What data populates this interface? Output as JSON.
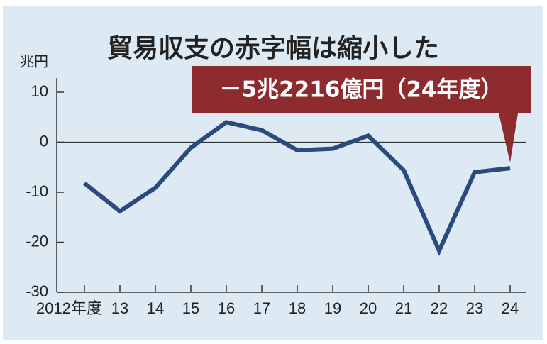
{
  "chart_data": {
    "type": "line",
    "title": "貿易収支の赤字幅は縮小した",
    "y_label": "兆円",
    "annotation": "－5兆2216億円（24年度）",
    "categories": [
      "2012年度",
      "13",
      "14",
      "15",
      "16",
      "17",
      "18",
      "19",
      "20",
      "21",
      "22",
      "23",
      "24"
    ],
    "series": [
      {
        "color": "#2c4a7e",
        "values": [
          -8.2,
          -13.8,
          -9.1,
          -1.1,
          4.0,
          2.4,
          -1.6,
          -1.3,
          1.3,
          -5.6,
          -21.7,
          -6.0,
          -5.2
        ]
      }
    ],
    "ylim": [
      -30,
      10
    ],
    "yticks": [
      -30,
      -20,
      -10,
      0,
      10
    ],
    "background": "#dde9f3",
    "annotation_color": "#8e2b2e"
  }
}
